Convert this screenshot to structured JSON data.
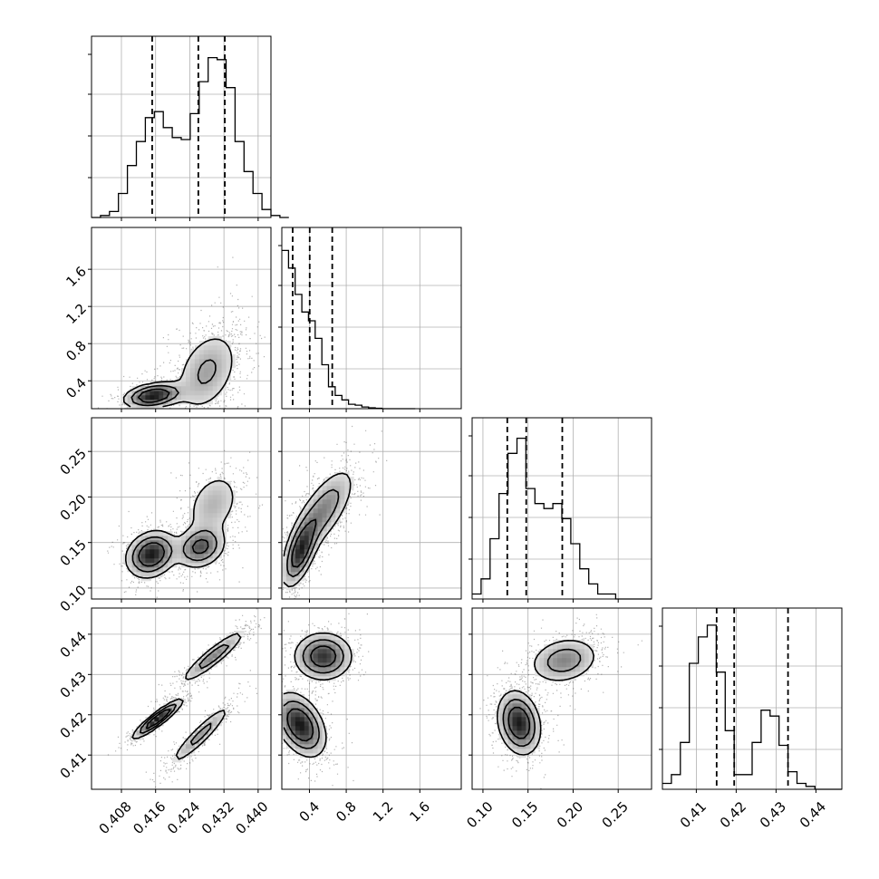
{
  "chart_data": {
    "type": "corner",
    "grid": true,
    "params": [
      {
        "range": [
          0.401,
          0.443
        ],
        "ticks": [
          0.408,
          0.416,
          0.424,
          0.432,
          0.44
        ],
        "tick_labels": [
          "0.408",
          "0.416",
          "0.424",
          "0.432",
          "0.440"
        ]
      },
      {
        "range": [
          0.1,
          2.05
        ],
        "ticks": [
          0.4,
          0.8,
          1.2,
          1.6
        ],
        "tick_labels": [
          "0.4",
          "0.8",
          "1.2",
          "1.6"
        ]
      },
      {
        "range": [
          0.088,
          0.287
        ],
        "ticks": [
          0.1,
          0.15,
          0.2,
          0.25
        ],
        "tick_labels": [
          "0.10",
          "0.15",
          "0.20",
          "0.25"
        ]
      },
      {
        "range": [
          0.4015,
          0.4465
        ],
        "ticks": [
          0.41,
          0.42,
          0.43,
          0.44
        ],
        "tick_labels": [
          "0.41",
          "0.42",
          "0.43",
          "0.44"
        ]
      }
    ],
    "histograms": [
      {
        "edges_start": 0.401,
        "bin_width": 0.0021,
        "counts": [
          0,
          1,
          3,
          12,
          26,
          38,
          50,
          53,
          45,
          40,
          39,
          52,
          68,
          80,
          79,
          65,
          38,
          23,
          12,
          4,
          1,
          0
        ],
        "max": 88,
        "quantiles": [
          0.4152,
          0.426,
          0.4322
        ]
      },
      {
        "edges_start": 0.1,
        "bin_width": 0.0725,
        "counts": [
          18,
          16,
          13,
          11,
          10,
          8,
          5,
          2.5,
          1.5,
          1,
          0.5,
          0.4,
          0.2,
          0.1,
          0.05,
          0,
          0,
          0,
          0,
          0
        ],
        "max": 20,
        "quantiles": [
          0.218,
          0.403,
          0.648
        ]
      },
      {
        "edges_start": 0.088,
        "bin_width": 0.00995,
        "counts": [
          1,
          4,
          12,
          21,
          29,
          32,
          22,
          19,
          18,
          19,
          16,
          11,
          6,
          3,
          1,
          1,
          0,
          0,
          0,
          0
        ],
        "max": 35,
        "quantiles": [
          0.127,
          0.148,
          0.188
        ]
      },
      {
        "edges_start": 0.4015,
        "bin_width": 0.00225,
        "counts": [
          0.2,
          0.5,
          1.6,
          4.3,
          5.2,
          5.6,
          4.0,
          2.0,
          0.5,
          0.5,
          1.6,
          2.7,
          2.5,
          1.5,
          0.6,
          0.2,
          0.1,
          0,
          0,
          0
        ],
        "max": 6,
        "quantiles": [
          0.4151,
          0.4195,
          0.433
        ]
      }
    ],
    "joint": [
      {
        "x": 0,
        "y": 1,
        "clusters": [
          {
            "mx": 0.4155,
            "my": 0.24,
            "sx": 0.0035,
            "sy": 0.07,
            "rho": 0.3,
            "w": 0.4
          },
          {
            "mx": 0.428,
            "my": 0.5,
            "sx": 0.004,
            "sy": 0.24,
            "rho": 0.35,
            "w": 0.6
          }
        ]
      },
      {
        "x": 0,
        "y": 2,
        "clusters": [
          {
            "mx": 0.415,
            "my": 0.137,
            "sx": 0.003,
            "sy": 0.013,
            "rho": 0.2,
            "w": 0.45
          },
          {
            "mx": 0.4265,
            "my": 0.145,
            "sx": 0.003,
            "sy": 0.012,
            "rho": 0.2,
            "w": 0.3
          },
          {
            "mx": 0.4295,
            "my": 0.192,
            "sx": 0.0035,
            "sy": 0.02,
            "rho": 0.3,
            "w": 0.25
          }
        ]
      },
      {
        "x": 0,
        "y": 3,
        "clusters": [
          {
            "mx": 0.4165,
            "my": 0.419,
            "sx": 0.003,
            "sy": 0.0025,
            "rho": 0.92,
            "w": 0.35
          },
          {
            "mx": 0.4265,
            "my": 0.415,
            "sx": 0.0038,
            "sy": 0.004,
            "rho": 0.93,
            "w": 0.3
          },
          {
            "mx": 0.4295,
            "my": 0.4345,
            "sx": 0.004,
            "sy": 0.0035,
            "rho": 0.92,
            "w": 0.35
          }
        ]
      },
      {
        "x": 1,
        "y": 2,
        "clusters": [
          {
            "mx": 0.3,
            "my": 0.14,
            "sx": 0.1,
            "sy": 0.02,
            "rho": 0.6,
            "w": 0.45
          },
          {
            "mx": 0.55,
            "my": 0.185,
            "sx": 0.18,
            "sy": 0.025,
            "rho": 0.7,
            "w": 0.55
          }
        ]
      },
      {
        "x": 1,
        "y": 3,
        "clusters": [
          {
            "mx": 0.3,
            "my": 0.4175,
            "sx": 0.14,
            "sy": 0.004,
            "rho": -0.4,
            "w": 0.55
          },
          {
            "mx": 0.55,
            "my": 0.4345,
            "sx": 0.16,
            "sy": 0.003,
            "rho": 0.0,
            "w": 0.45
          }
        ]
      },
      {
        "x": 2,
        "y": 3,
        "clusters": [
          {
            "mx": 0.14,
            "my": 0.418,
            "sx": 0.012,
            "sy": 0.004,
            "rho": -0.2,
            "w": 0.6
          },
          {
            "mx": 0.19,
            "my": 0.4335,
            "sx": 0.02,
            "sy": 0.003,
            "rho": 0.2,
            "w": 0.4
          }
        ]
      }
    ]
  }
}
